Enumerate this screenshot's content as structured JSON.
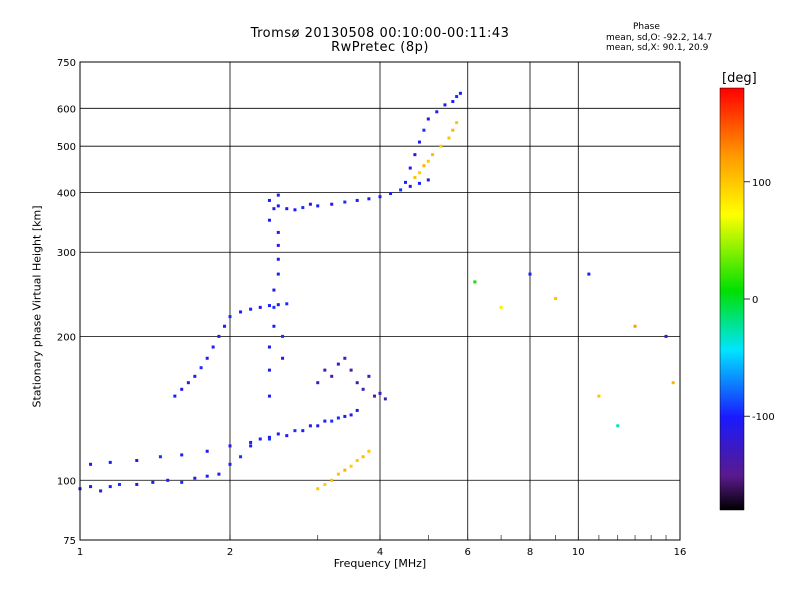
{
  "chart_data": {
    "type": "scatter",
    "title": "Tromsø 20130508 00:10:00-00:11:43",
    "subtitle": "RwPretec (8p)",
    "xlabel": "Frequency [MHz]",
    "ylabel": "Stationary phase Virtual Height [km]",
    "x_scale": "log",
    "y_scale": "log",
    "xlim": [
      1,
      16
    ],
    "ylim": [
      75,
      750
    ],
    "x_ticks": [
      "1",
      "2",
      "4",
      "6",
      "8",
      "10",
      "16"
    ],
    "x_tick_values": [
      1,
      2,
      4,
      6,
      8,
      10,
      16
    ],
    "y_ticks": [
      "75",
      "100",
      "200",
      "300",
      "400",
      "500",
      "600",
      "750"
    ],
    "y_tick_values": [
      75,
      100,
      200,
      300,
      400,
      500,
      600,
      750
    ],
    "grid": true,
    "colorbar": {
      "label": "[deg]",
      "range": [
        -180,
        180
      ],
      "ticks": [
        "100",
        "0",
        "-100"
      ],
      "tick_values": [
        100,
        0,
        -100
      ]
    },
    "phase_info": {
      "heading": "Phase",
      "o_mode": "mean, sd,O: -92.2, 14.7",
      "x_mode": "mean, sd,X:  90.1, 20.9"
    },
    "series": [
      {
        "x": [
          1.0,
          1.05,
          1.1,
          1.15,
          1.2,
          1.3,
          1.4,
          1.5,
          1.6,
          1.7,
          1.8,
          1.9,
          2.0,
          2.1,
          2.2,
          2.3,
          2.4,
          2.5,
          2.7,
          2.9,
          3.1,
          3.3,
          3.5
        ],
        "y": [
          96,
          97,
          95,
          97,
          98,
          98,
          99,
          100,
          99,
          101,
          102,
          103,
          108,
          112,
          118,
          122,
          123,
          125,
          127,
          130,
          133,
          135,
          137
        ],
        "phase": [
          -100,
          -105,
          -110,
          -100,
          -95,
          -110,
          -100,
          -105,
          -95,
          -110,
          -100,
          -105,
          -100,
          -95,
          -110,
          -100,
          -105,
          -100,
          -95,
          -110,
          -100,
          -95,
          -105
        ]
      },
      {
        "x": [
          1.05,
          1.15,
          1.3,
          1.45,
          1.6,
          1.8,
          2.0,
          2.2,
          2.4,
          2.6,
          2.8,
          3.0,
          3.2,
          3.4,
          3.6
        ],
        "y": [
          108,
          109,
          110,
          112,
          113,
          115,
          118,
          120,
          122,
          124,
          127,
          130,
          133,
          136,
          140
        ],
        "phase": [
          -105,
          -100,
          -110,
          -95,
          -100,
          -105,
          -110,
          -100,
          -95,
          -105,
          -100,
          -110,
          -95,
          -100,
          -105
        ]
      },
      {
        "x": [
          1.55,
          1.6,
          1.65,
          1.7,
          1.75,
          1.8,
          1.85,
          1.9,
          1.95,
          2.0,
          2.1,
          2.2,
          2.3,
          2.4,
          2.5,
          2.6
        ],
        "y": [
          150,
          155,
          160,
          165,
          172,
          180,
          190,
          200,
          210,
          220,
          225,
          228,
          230,
          232,
          233,
          234
        ],
        "phase": [
          -100,
          -105,
          -110,
          -100,
          -95,
          -105,
          -100,
          -110,
          -100,
          -95,
          -105,
          -100,
          -110,
          -100,
          -105,
          -95
        ]
      },
      {
        "x": [
          2.4,
          2.4,
          2.4,
          2.45,
          2.45,
          2.45,
          2.5,
          2.5,
          2.5,
          2.5,
          2.55,
          2.55,
          2.4,
          2.45,
          2.5
        ],
        "y": [
          150,
          170,
          190,
          210,
          230,
          250,
          270,
          290,
          310,
          330,
          200,
          180,
          350,
          370,
          395
        ],
        "phase": [
          -100,
          -110,
          -105,
          -100,
          -95,
          -110,
          -100,
          -105,
          -110,
          -100,
          -95,
          -105,
          -100,
          -110,
          -105
        ]
      },
      {
        "x": [
          2.4,
          2.5,
          2.6,
          2.7,
          2.8,
          2.9,
          3.0,
          3.2,
          3.4,
          3.6,
          3.8,
          4.0,
          4.2,
          4.4,
          4.6,
          4.8,
          5.0
        ],
        "y": [
          385,
          375,
          370,
          368,
          372,
          378,
          375,
          378,
          382,
          385,
          388,
          392,
          398,
          405,
          412,
          418,
          425
        ],
        "phase": [
          -100,
          -105,
          -110,
          -100,
          -95,
          -105,
          -100,
          -110,
          -95,
          -100,
          -105,
          -110,
          -100,
          -95,
          -105,
          -100,
          -110
        ]
      },
      {
        "x": [
          4.5,
          4.6,
          4.7,
          4.8,
          4.9,
          5.0,
          5.2,
          5.4,
          5.6,
          5.7,
          5.8
        ],
        "y": [
          420,
          450,
          480,
          510,
          540,
          570,
          590,
          610,
          620,
          635,
          645
        ],
        "phase": [
          -100,
          -110,
          -105,
          -100,
          -95,
          -105,
          -100,
          -110,
          -100,
          -95,
          -105
        ]
      },
      {
        "x": [
          4.7,
          4.8,
          4.9,
          5.0,
          5.1,
          5.3,
          5.5,
          5.6,
          5.7
        ],
        "y": [
          430,
          440,
          455,
          465,
          480,
          500,
          520,
          540,
          560
        ],
        "phase": [
          100,
          95,
          110,
          100,
          105,
          95,
          100,
          110,
          100
        ]
      },
      {
        "x": [
          3.0,
          3.1,
          3.2,
          3.3,
          3.4,
          3.5,
          3.6,
          3.7,
          3.8,
          3.9,
          4.0,
          4.1
        ],
        "y": [
          160,
          170,
          165,
          175,
          180,
          170,
          160,
          155,
          165,
          150,
          152,
          148
        ],
        "phase": [
          -130,
          -135,
          -140,
          -125,
          -130,
          -140,
          -135,
          -130,
          -125,
          -140,
          -130,
          -135
        ]
      },
      {
        "x": [
          3.0,
          3.1,
          3.2,
          3.3,
          3.4,
          3.5,
          3.6,
          3.7,
          3.8
        ],
        "y": [
          96,
          98,
          100,
          103,
          105,
          107,
          110,
          112,
          115
        ],
        "phase": [
          100,
          95,
          105,
          100,
          110,
          95,
          100,
          105,
          100
        ]
      },
      {
        "x": [
          6.2,
          7.0,
          8.0,
          9.0,
          10.5,
          11.0,
          12.0,
          13.0,
          15.0,
          15.5
        ],
        "y": [
          260,
          230,
          270,
          240,
          270,
          150,
          130,
          210,
          200,
          160
        ],
        "phase": [
          10,
          80,
          -100,
          100,
          -100,
          100,
          -30,
          120,
          -110,
          110
        ]
      }
    ]
  }
}
